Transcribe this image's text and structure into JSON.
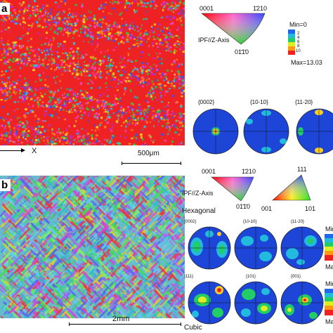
{
  "panel_a": {
    "label": "a",
    "axis_label": "X",
    "scalebar": "500μm",
    "ipf": {
      "title": "IPF//Z-Axis",
      "corner_0001": "0001",
      "corner_1210": "1̄210",
      "corner_0110": "01̄1̄0"
    },
    "legend": {
      "min": "Min=0",
      "max": "Max=13.03",
      "ticks": [
        "2",
        "4",
        "6",
        "8",
        "10"
      ]
    },
    "pole_figures": [
      "{0002}",
      "{10-10}",
      "{11-20}"
    ]
  },
  "panel_b": {
    "label": "b",
    "scalebar": "2mm",
    "ipf_hex": {
      "title": "IPF//Z-Axis",
      "corner_0001": "0001",
      "corner_1210": "1̄210",
      "corner_0110": "01̄1̄0"
    },
    "ipf_cubic": {
      "corner_001": "001",
      "corner_101": "101",
      "corner_111": "111"
    },
    "hexagonal": {
      "title": "Hexagonal",
      "pole_figures": [
        "{0002}",
        "{10-10}",
        "{11-20}"
      ],
      "legend_min": "Min",
      "legend_max": "Ma"
    },
    "cubic": {
      "title": "Cubic",
      "pole_figures": [
        "{111}",
        "{101}",
        "{001}"
      ],
      "legend_min": "Min",
      "legend_max": "Ma"
    }
  },
  "colors": {
    "ebsd_red": "#ee2222",
    "pf_blue": "#1d46d8"
  }
}
